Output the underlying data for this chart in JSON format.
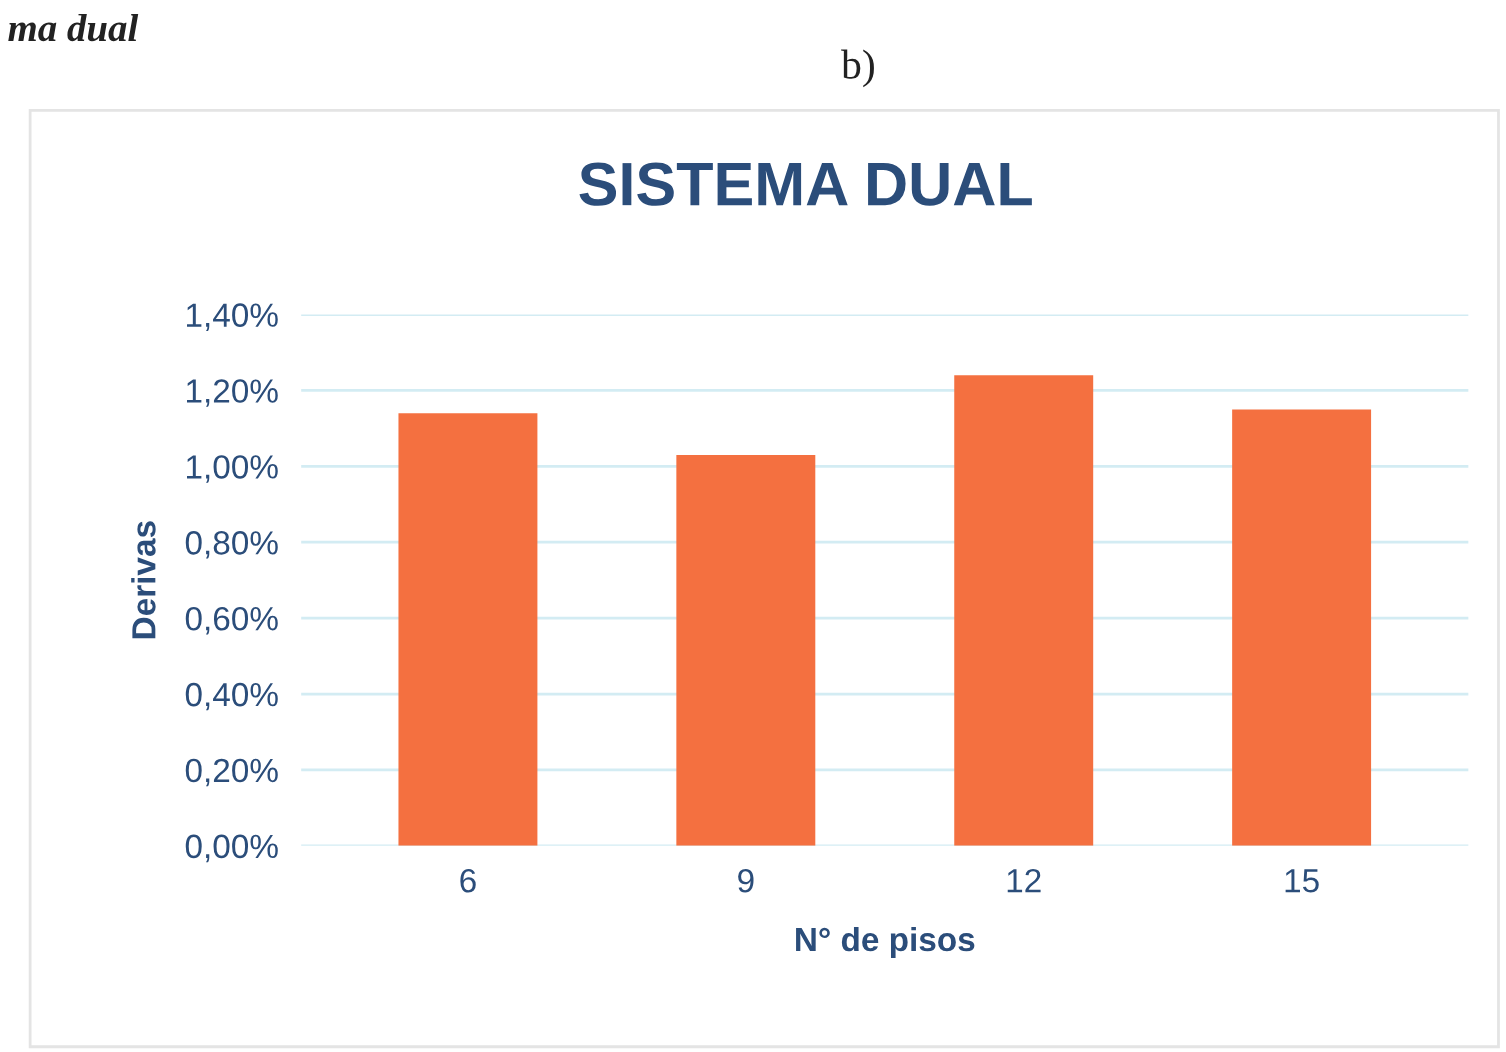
{
  "chart_data": {
    "type": "bar",
    "title": "SISTEMA DUAL",
    "xlabel": "N° de pisos",
    "ylabel": "Derivas",
    "annotations": [
      "ma dual",
      "b)"
    ],
    "categories": [
      "6",
      "9",
      "12",
      "15"
    ],
    "values": [
      1.14,
      1.03,
      1.24,
      1.15
    ],
    "color": "#f47040",
    "ylim": [
      0,
      1.4
    ],
    "yticks": [
      {
        "value": 0,
        "label": "0,00%"
      },
      {
        "value": 0.2,
        "label": "0,20%"
      },
      {
        "value": 0.4,
        "label": "0,40%"
      },
      {
        "value": 0.6,
        "label": "0,60%"
      },
      {
        "value": 0.8,
        "label": "0,80%"
      },
      {
        "value": 1.0,
        "label": "1,00%"
      },
      {
        "value": 1.2,
        "label": "1,20%"
      },
      {
        "value": 1.4,
        "label": "1,40%"
      }
    ],
    "grid": "y",
    "legend": false
  }
}
